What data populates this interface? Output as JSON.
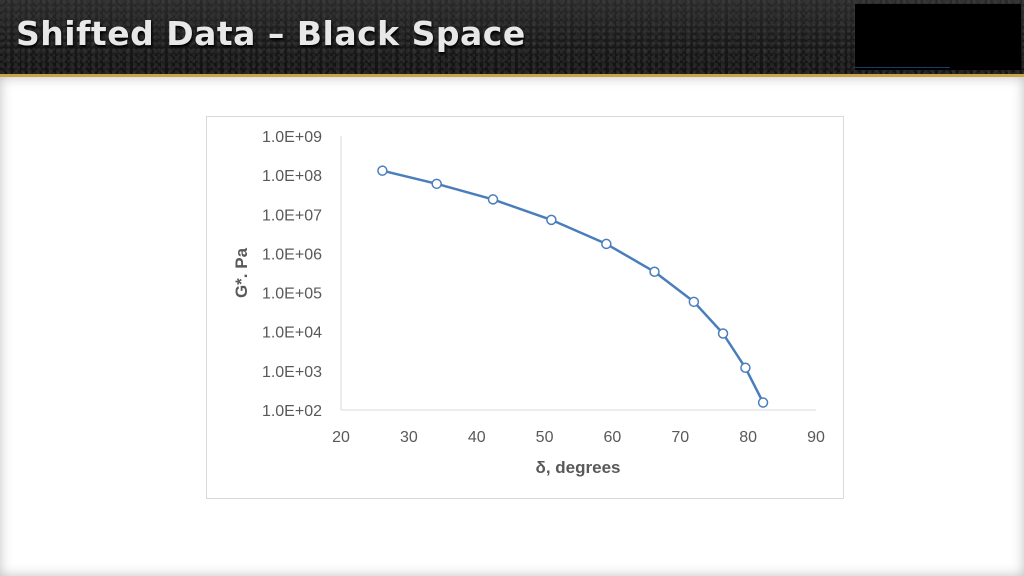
{
  "slide": {
    "title": "Shifted Data – Black Space"
  },
  "chart_data": {
    "type": "line",
    "xlabel": "δ, degrees",
    "ylabel": "G*. Pa",
    "xlim": [
      20,
      90
    ],
    "x_ticks": [
      20,
      30,
      40,
      50,
      60,
      70,
      80,
      90
    ],
    "y_scale": "log",
    "ylim": [
      100,
      1000000000
    ],
    "y_ticks": [
      100,
      1000,
      10000,
      100000,
      1000000,
      10000000,
      100000000,
      1000000000
    ],
    "y_tick_labels": [
      "1.0E+02",
      "1.0E+03",
      "1.0E+04",
      "1.0E+05",
      "1.0E+06",
      "1.0E+07",
      "1.0E+08",
      "1.0E+09"
    ],
    "grid": false,
    "legend": "none",
    "line_color": "#4a7ebb",
    "marker": "open-circle",
    "series": [
      {
        "x": [
          26.1,
          34.1,
          42.4,
          51.0,
          59.1,
          66.2,
          72.0,
          76.3,
          79.6,
          82.2
        ],
        "y": [
          130000000,
          60000000,
          24000000,
          7200000,
          1750000,
          340000,
          58000,
          9000,
          1200,
          155
        ]
      }
    ]
  }
}
